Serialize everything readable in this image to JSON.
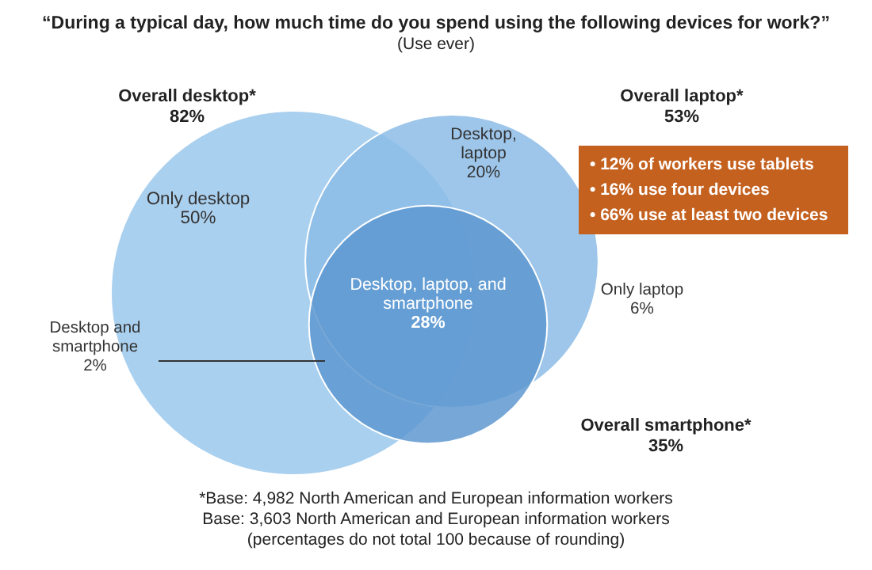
{
  "chart_data": {
    "type": "other",
    "title": "“During a typical day, how much time do you spend using the following devices for work?”",
    "subtitle": "(Use ever)",
    "categories": [
      "Overall desktop*",
      "Overall laptop*",
      "Overall smartphone*",
      "Only desktop",
      "Desktop, laptop",
      "Only laptop",
      "Desktop, laptop, and smartphone",
      "Desktop and smartphone"
    ],
    "values": [
      82,
      53,
      35,
      50,
      20,
      6,
      28,
      2
    ],
    "value_labels": [
      "82%",
      "53%",
      "35%",
      "50%",
      "20%",
      "6%",
      "28%",
      "2%"
    ],
    "colors": [
      "#aad0ef",
      "#8cbce6",
      "#5e98d0",
      null,
      null,
      null,
      null,
      null
    ],
    "annotations": [
      "• 12% of workers use tablets",
      "• 16% use four devices",
      "• 66% use at least two devices",
      "*Base: 4,982 North American and European information workers",
      "Base: 3,603 North American and European information workers",
      "(percentages do not total 100 because of rounding)"
    ]
  }
}
